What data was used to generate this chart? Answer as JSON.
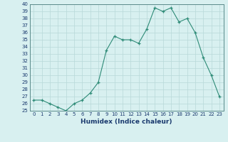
{
  "x": [
    0,
    1,
    2,
    3,
    4,
    5,
    6,
    7,
    8,
    9,
    10,
    11,
    12,
    13,
    14,
    15,
    16,
    17,
    18,
    19,
    20,
    21,
    22,
    23
  ],
  "y": [
    26.5,
    26.5,
    26.0,
    25.5,
    25.0,
    26.0,
    26.5,
    27.5,
    29.0,
    33.5,
    35.5,
    35.0,
    35.0,
    34.5,
    36.5,
    39.5,
    39.0,
    39.5,
    37.5,
    38.0,
    36.0,
    32.5,
    30.0,
    27.0
  ],
  "xlabel": "Humidex (Indice chaleur)",
  "ylim": [
    25,
    40
  ],
  "ytick_min": 25,
  "ytick_max": 40,
  "ytick_step": 1,
  "xticks": [
    0,
    1,
    2,
    3,
    4,
    5,
    6,
    7,
    8,
    9,
    10,
    11,
    12,
    13,
    14,
    15,
    16,
    17,
    18,
    19,
    20,
    21,
    22,
    23
  ],
  "line_color": "#2e8b77",
  "marker_color": "#2e8b77",
  "bg_color": "#d8f0f0",
  "grid_major_color": "#b8d8d8",
  "grid_minor_color": "#cce8e8",
  "xlabel_color": "#1a3a6e",
  "tick_color": "#1a3a6e",
  "spine_color": "#5a8a8a"
}
